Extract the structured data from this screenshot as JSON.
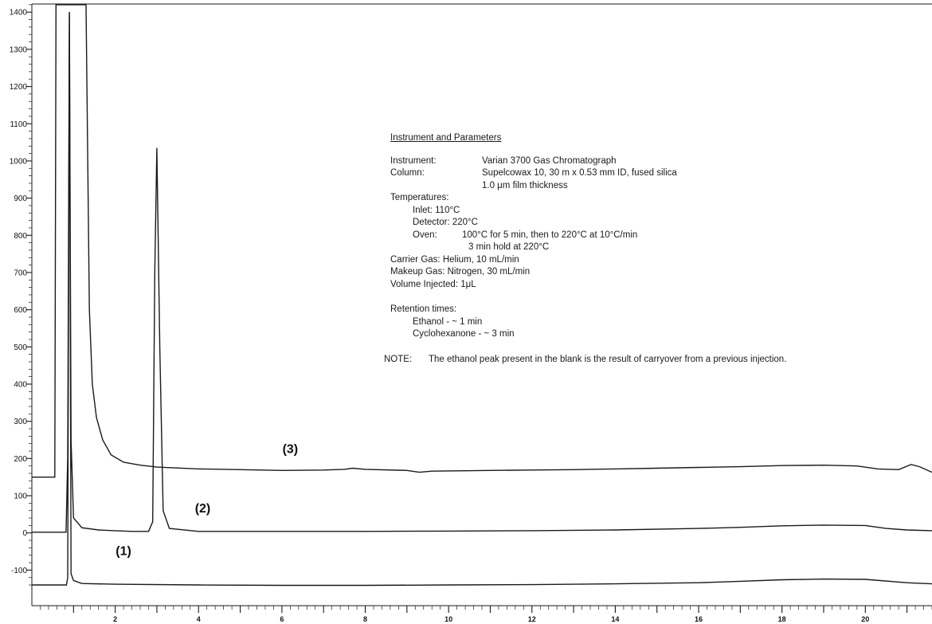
{
  "chart_data": {
    "type": "line",
    "title": "",
    "xlabel": "",
    "ylabel": "",
    "xlim": [
      0,
      21.6
    ],
    "ylim": [
      -150,
      1420
    ],
    "y_ticks": [
      -100,
      0,
      100,
      200,
      300,
      400,
      500,
      600,
      700,
      800,
      900,
      1000,
      1100,
      1200,
      1300,
      1400
    ],
    "y_tick_labels": [
      "-100",
      "0",
      "100",
      "200",
      "300",
      "400",
      "500",
      "600",
      "700",
      "800",
      "900",
      "1000",
      "1100",
      "1200",
      "1300",
      "1400"
    ],
    "x_ticks": [
      2,
      4,
      6,
      8,
      10,
      12,
      14,
      16,
      18,
      20
    ],
    "x_tick_labels": [
      "2",
      "4",
      "6",
      "8",
      "10",
      "12",
      "14",
      "16",
      "18",
      "20"
    ],
    "grid": false,
    "series": [
      {
        "name": "(1)",
        "points": [
          [
            0,
            -140
          ],
          [
            0.83,
            -140
          ],
          [
            0.86,
            -120
          ],
          [
            0.9,
            1400
          ],
          [
            0.94,
            -110
          ],
          [
            1.0,
            -128
          ],
          [
            1.2,
            -136
          ],
          [
            2,
            -138
          ],
          [
            4,
            -140
          ],
          [
            6,
            -141
          ],
          [
            8,
            -141
          ],
          [
            10,
            -140
          ],
          [
            12,
            -139
          ],
          [
            14,
            -137
          ],
          [
            16,
            -134
          ],
          [
            17,
            -130
          ],
          [
            18,
            -126
          ],
          [
            19,
            -124
          ],
          [
            20,
            -125
          ],
          [
            21,
            -134
          ],
          [
            21.6,
            -137
          ]
        ]
      },
      {
        "name": "(2)",
        "points": [
          [
            0,
            2
          ],
          [
            0.82,
            2
          ],
          [
            0.86,
            200
          ],
          [
            0.9,
            1400
          ],
          [
            0.94,
            250
          ],
          [
            1.0,
            40
          ],
          [
            1.2,
            14
          ],
          [
            1.6,
            8
          ],
          [
            2.4,
            4
          ],
          [
            2.8,
            4
          ],
          [
            2.9,
            30
          ],
          [
            2.95,
            700
          ],
          [
            3.0,
            1035
          ],
          [
            3.07,
            500
          ],
          [
            3.15,
            60
          ],
          [
            3.3,
            12
          ],
          [
            4,
            4
          ],
          [
            6,
            4
          ],
          [
            8,
            4
          ],
          [
            10,
            5
          ],
          [
            12,
            6
          ],
          [
            14,
            8
          ],
          [
            16,
            12
          ],
          [
            17,
            15
          ],
          [
            18,
            19
          ],
          [
            19,
            21
          ],
          [
            20,
            20
          ],
          [
            20.5,
            12
          ],
          [
            21,
            8
          ],
          [
            21.6,
            6
          ]
        ]
      },
      {
        "name": "(3)",
        "points": [
          [
            0,
            150
          ],
          [
            0.55,
            150
          ],
          [
            0.58,
            1420
          ],
          [
            1.0,
            1420
          ],
          [
            1.3,
            1420
          ],
          [
            1.38,
            600
          ],
          [
            1.45,
            400
          ],
          [
            1.55,
            310
          ],
          [
            1.7,
            250
          ],
          [
            1.9,
            210
          ],
          [
            2.2,
            190
          ],
          [
            2.6,
            182
          ],
          [
            3.0,
            177
          ],
          [
            4,
            172
          ],
          [
            5,
            170
          ],
          [
            6,
            168
          ],
          [
            7,
            169
          ],
          [
            7.5,
            171
          ],
          [
            7.7,
            174
          ],
          [
            8,
            171
          ],
          [
            9,
            168
          ],
          [
            9.3,
            163
          ],
          [
            9.6,
            166
          ],
          [
            11,
            168
          ],
          [
            12,
            169
          ],
          [
            13,
            170
          ],
          [
            14,
            172
          ],
          [
            15,
            174
          ],
          [
            16,
            176
          ],
          [
            17,
            178
          ],
          [
            18,
            181
          ],
          [
            19,
            182
          ],
          [
            19.8,
            180
          ],
          [
            20.3,
            172
          ],
          [
            20.8,
            170
          ],
          [
            21.1,
            184
          ],
          [
            21.3,
            178
          ],
          [
            21.6,
            163
          ]
        ]
      }
    ],
    "annotations": [
      {
        "text": "(1)",
        "x": 2.2,
        "y": -60
      },
      {
        "text": "(2)",
        "x": 4.1,
        "y": 55
      },
      {
        "text": "(3)",
        "x": 6.2,
        "y": 215
      }
    ]
  },
  "params": {
    "heading": "Instrument and Parameters",
    "instrument_label": "Instrument:",
    "instrument_value": "Varian 3700 Gas Chromatograph",
    "column_label": "Column:",
    "column_value": "Supelcowax 10, 30 m x 0.53 mm ID, fused silica",
    "column_value2": "1.0 μm film thickness",
    "temperatures_label": "Temperatures:",
    "inlet": "Inlet: 110°C",
    "detector": "Detector: 220°C",
    "oven_label": "Oven:",
    "oven_value": "100°C for 5 min, then to 220°C at 10°C/min",
    "oven_value2": "3 min hold at 220°C",
    "carrier_gas": "Carrier Gas: Helium, 10 mL/min",
    "makeup_gas": "Makeup Gas: Nitrogen, 30 mL/min",
    "volume_injected": "Volume Injected: 1μL",
    "retention_label": "Retention times:",
    "ethanol": "Ethanol - ~ 1 min",
    "cyclohexanone": "Cyclohexanone - ~ 3 min",
    "note_label": "NOTE:",
    "note_value": "The ethanol peak present in the blank is the result of carryover from a previous injection."
  }
}
